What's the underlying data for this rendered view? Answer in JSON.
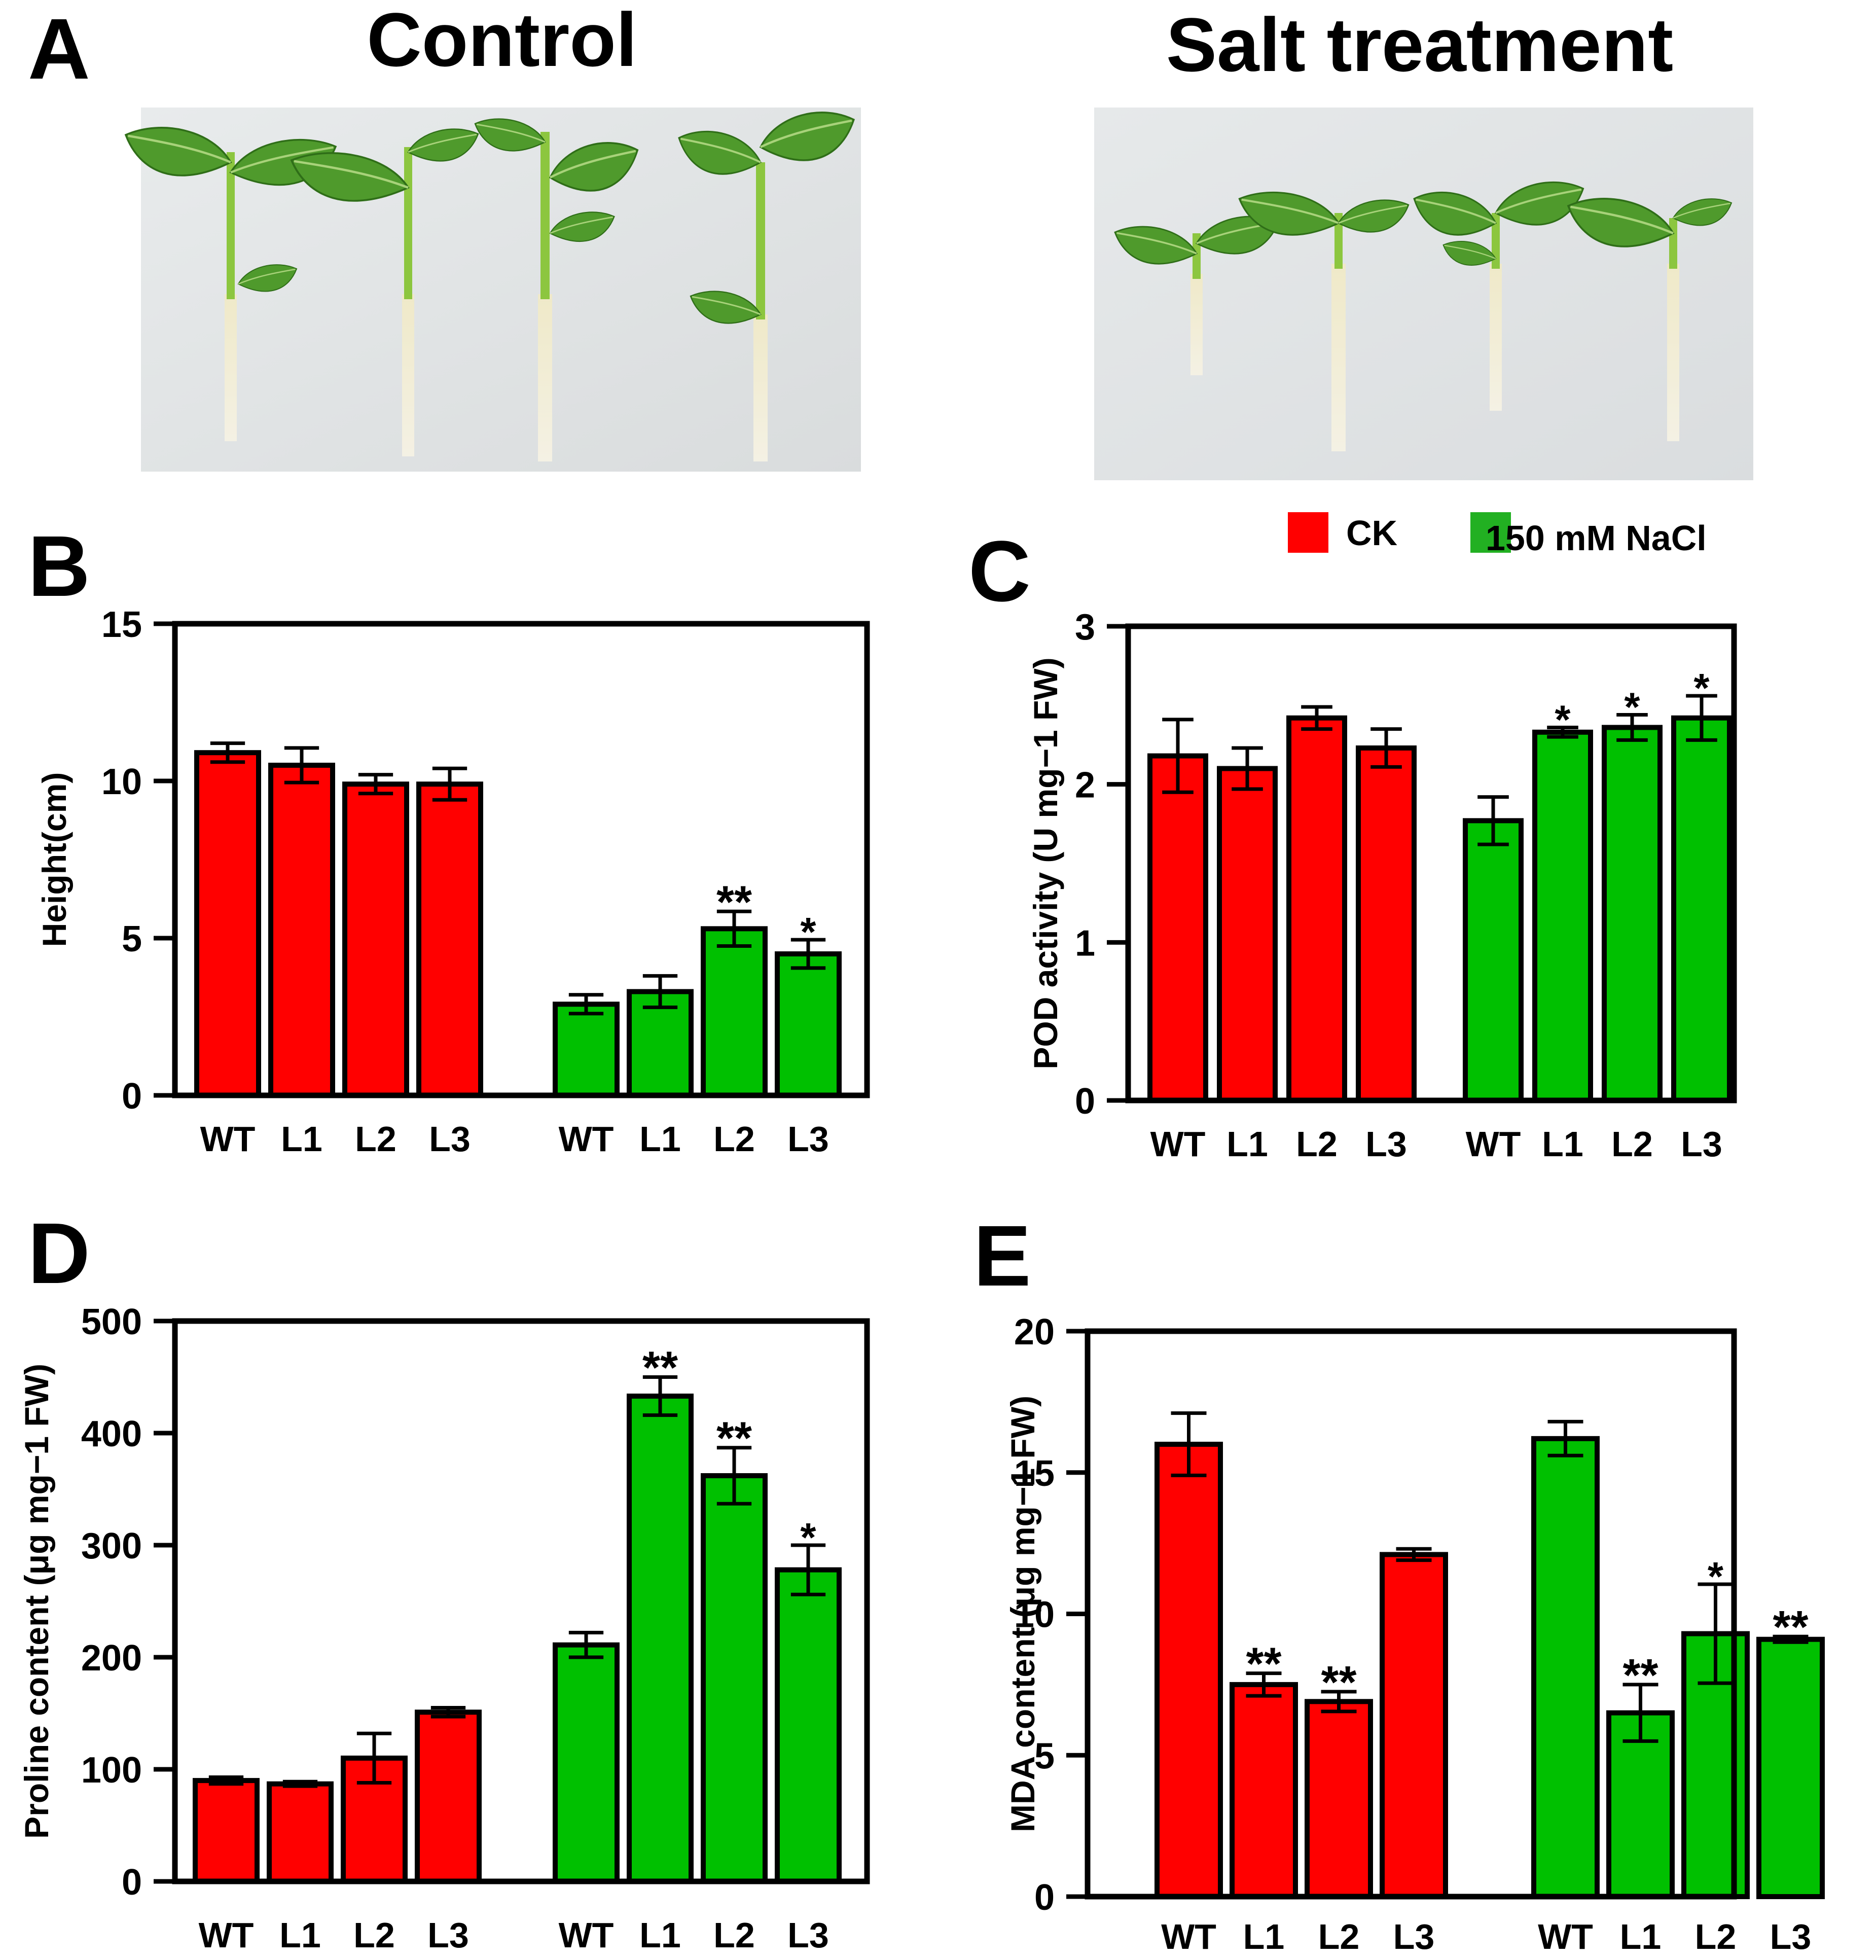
{
  "panel_a": {
    "letter": "A",
    "left_title": "Control",
    "right_title": "Salt treatment",
    "left_photo": "plant-photo",
    "right_photo": "plant-photo"
  },
  "legend": {
    "items": [
      {
        "label": "CK",
        "color": "#ff0000"
      },
      {
        "label": "150 mM NaCl",
        "color": "#22b022"
      }
    ]
  },
  "colors": {
    "ck": "#ff0000",
    "nacl": "#00c000",
    "axis": "#000000"
  },
  "chart_data": [
    {
      "id": "B",
      "letter": "B",
      "type": "bar",
      "ylabel": "Height(cm)",
      "ylim": [
        0,
        15
      ],
      "yticks": [
        0,
        5,
        10,
        15
      ],
      "categories": [
        "WT",
        "L1",
        "L2",
        "L3"
      ],
      "groups": [
        {
          "name": "CK",
          "values": [
            10.9,
            10.5,
            9.9,
            9.9
          ],
          "errors": [
            0.3,
            0.55,
            0.3,
            0.5
          ],
          "marks": [
            "",
            "",
            "",
            ""
          ]
        },
        {
          "name": "150 mM NaCl",
          "values": [
            2.9,
            3.3,
            5.3,
            4.5
          ],
          "errors": [
            0.3,
            0.5,
            0.55,
            0.45
          ],
          "marks": [
            "",
            "",
            "**",
            "*"
          ]
        }
      ]
    },
    {
      "id": "C",
      "letter": "C",
      "type": "bar",
      "ylabel": "POD activity (U mg−1 FW)",
      "ylim": [
        0,
        3
      ],
      "yticks": [
        0,
        1,
        2,
        3
      ],
      "categories": [
        "WT",
        "L1",
        "L2",
        "L3"
      ],
      "groups": [
        {
          "name": "CK",
          "values": [
            2.18,
            2.1,
            2.42,
            2.23
          ],
          "errors": [
            0.23,
            0.13,
            0.07,
            0.12
          ],
          "marks": [
            "",
            "",
            "",
            ""
          ]
        },
        {
          "name": "150 mM NaCl",
          "values": [
            1.77,
            2.33,
            2.36,
            2.42
          ],
          "errors": [
            0.15,
            0.03,
            0.08,
            0.14
          ],
          "marks": [
            "",
            "*",
            "*",
            "*"
          ]
        }
      ]
    },
    {
      "id": "D",
      "letter": "D",
      "type": "bar",
      "ylabel": "Proline content (μg mg−1 FW)",
      "ylim": [
        0,
        500
      ],
      "yticks": [
        0,
        100,
        200,
        300,
        400,
        500
      ],
      "categories": [
        "WT",
        "L1",
        "L2",
        "L3"
      ],
      "groups": [
        {
          "name": "CK",
          "values": [
            90,
            87,
            110,
            151
          ],
          "errors": [
            3,
            2,
            22,
            4
          ],
          "marks": [
            "",
            "",
            "",
            ""
          ]
        },
        {
          "name": "150 mM NaCl",
          "values": [
            211,
            433,
            362,
            278
          ],
          "errors": [
            11,
            17,
            25,
            22
          ],
          "marks": [
            "",
            "**",
            "**",
            "*"
          ]
        }
      ]
    },
    {
      "id": "E",
      "letter": "E",
      "type": "bar",
      "ylabel": "MDA content (μg mg−1 FW)",
      "ylim": [
        0,
        20
      ],
      "yticks": [
        0,
        5,
        10,
        15,
        20
      ],
      "categories": [
        "WT",
        "L1",
        "L2",
        "L3"
      ],
      "groups": [
        {
          "name": "CK",
          "values": [
            16.0,
            7.5,
            6.9,
            12.1
          ],
          "errors": [
            1.1,
            0.4,
            0.35,
            0.2
          ],
          "marks": [
            "",
            "**",
            "**",
            ""
          ]
        },
        {
          "name": "150 mM NaCl",
          "values": [
            16.2,
            6.5,
            9.3,
            9.1
          ],
          "errors": [
            0.6,
            1.0,
            1.75,
            0.1
          ],
          "marks": [
            "",
            "**",
            "*",
            "**"
          ]
        }
      ]
    }
  ]
}
